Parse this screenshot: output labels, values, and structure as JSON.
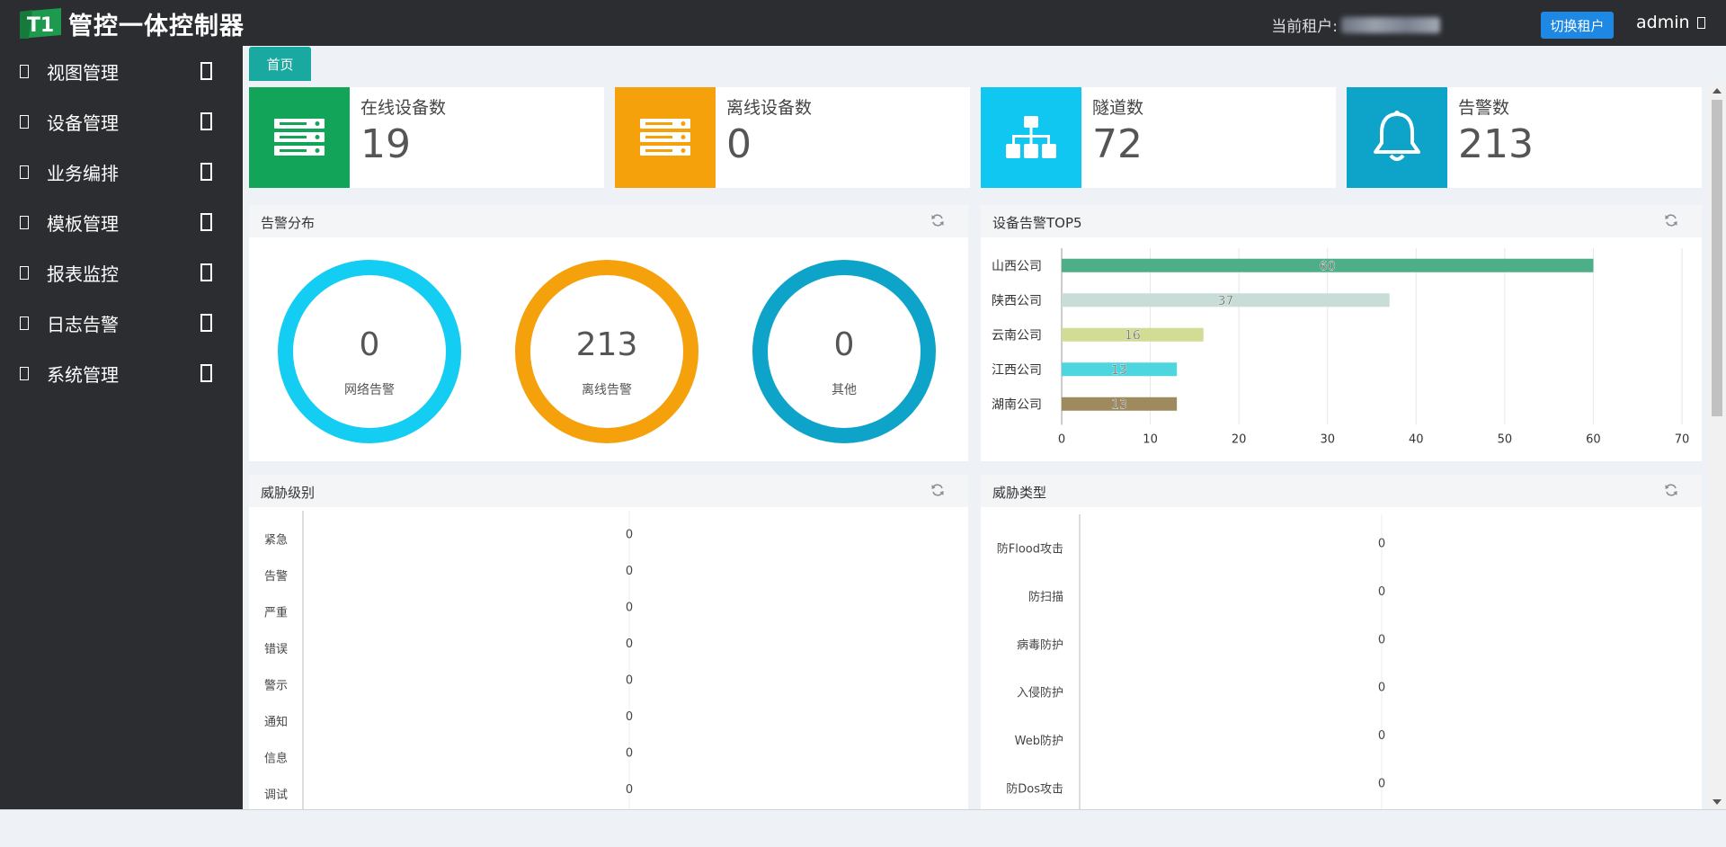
{
  "app": {
    "logo_mark": "T1",
    "title": "管控一体控制器"
  },
  "header": {
    "tenant_label": "当前租户:",
    "switch_tenant": "切换租户",
    "user": "admin"
  },
  "sidebar": {
    "items": [
      {
        "label": "视图管理"
      },
      {
        "label": "设备管理"
      },
      {
        "label": "业务编排"
      },
      {
        "label": "模板管理"
      },
      {
        "label": "报表监控"
      },
      {
        "label": "日志告警"
      },
      {
        "label": "系统管理"
      }
    ]
  },
  "tabs": [
    {
      "label": "首页"
    }
  ],
  "stats": [
    {
      "title": "在线设备数",
      "value": "19",
      "color": "#12a55a",
      "icon": "server-icon"
    },
    {
      "title": "离线设备数",
      "value": "0",
      "color": "#f4a10c",
      "icon": "server-icon"
    },
    {
      "title": "隧道数",
      "value": "72",
      "color": "#10c7f1",
      "icon": "sitemap-icon"
    },
    {
      "title": "告警数",
      "value": "213",
      "color": "#0ea3c8",
      "icon": "bell-icon"
    }
  ],
  "alarm_distribution": {
    "title": "告警分布",
    "donuts": [
      {
        "value": "0",
        "label": "网络告警",
        "color": "#13cdf2"
      },
      {
        "value": "213",
        "label": "离线告警",
        "color": "#f4a10c"
      },
      {
        "value": "0",
        "label": "其他",
        "color": "#0ea3c8"
      }
    ]
  },
  "top5": {
    "title": "设备告警TOP5"
  },
  "threat_level": {
    "title": "威胁级别"
  },
  "threat_type": {
    "title": "威胁类型"
  },
  "chart_data": [
    {
      "type": "bar",
      "orientation": "horizontal",
      "title": "设备告警TOP5",
      "categories": [
        "山西公司",
        "陕西公司",
        "云南公司",
        "江西公司",
        "湖南公司"
      ],
      "values": [
        60,
        37,
        16,
        13,
        13
      ],
      "colors": [
        "#4caf88",
        "#c8dcd8",
        "#d2dc94",
        "#4dd6e0",
        "#9e8a5c"
      ],
      "xlim": [
        0,
        70
      ],
      "xticks": [
        0,
        10,
        20,
        30,
        40,
        50,
        60,
        70
      ],
      "grid": true
    },
    {
      "type": "bar",
      "orientation": "horizontal",
      "title": "威胁级别",
      "categories": [
        "紧急",
        "告警",
        "严重",
        "错误",
        "警示",
        "通知",
        "信息",
        "调试"
      ],
      "values": [
        0,
        0,
        0,
        0,
        0,
        0,
        0,
        0
      ]
    },
    {
      "type": "bar",
      "orientation": "horizontal",
      "title": "威胁类型",
      "categories": [
        "防Flood攻击",
        "防扫描",
        "病毒防护",
        "入侵防护",
        "Web防护",
        "防Dos攻击"
      ],
      "values": [
        0,
        0,
        0,
        0,
        0,
        0
      ]
    }
  ]
}
